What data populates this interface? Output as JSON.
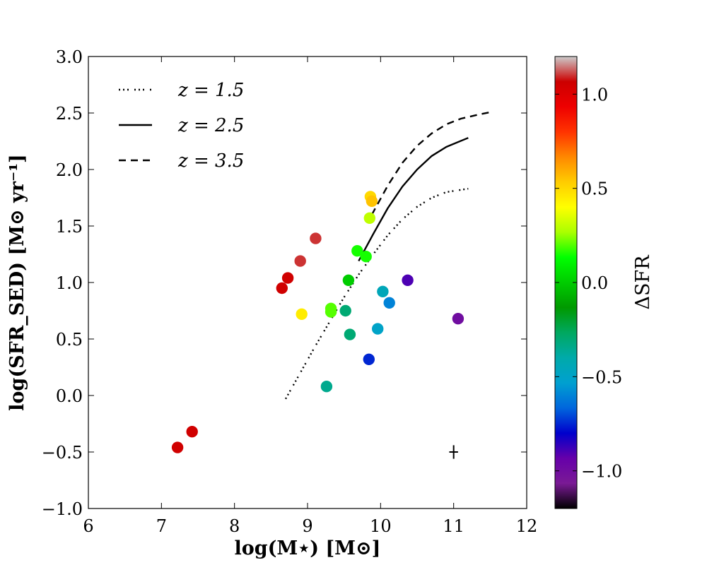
{
  "chart_data": {
    "type": "scatter",
    "title": "",
    "xlabel": "log(M⋆) [M⊙]",
    "ylabel": "log(SFR_SED) [M⊙ yr⁻¹]",
    "xlim": [
      6,
      12
    ],
    "ylim": [
      -1.0,
      3.0
    ],
    "xticks": [
      6,
      7,
      8,
      9,
      10,
      11,
      12
    ],
    "xtick_labels": [
      "6",
      "7",
      "8",
      "9",
      "10",
      "11",
      "12"
    ],
    "yticks": [
      -1.0,
      -0.5,
      0.0,
      0.5,
      1.0,
      1.5,
      2.0,
      2.5,
      3.0
    ],
    "ytick_labels": [
      "−1.0",
      "−0.5",
      "0.0",
      "0.5",
      "1.0",
      "1.5",
      "2.0",
      "2.5",
      "3.0"
    ],
    "grid": false,
    "legend_position": "top-left",
    "points": [
      {
        "x": 7.22,
        "y": -0.46,
        "c": 1.05
      },
      {
        "x": 7.42,
        "y": -0.32,
        "c": 1.05
      },
      {
        "x": 8.65,
        "y": 0.95,
        "c": 1.05
      },
      {
        "x": 8.73,
        "y": 1.04,
        "c": 1.05
      },
      {
        "x": 8.9,
        "y": 1.19,
        "c": 1.1
      },
      {
        "x": 9.11,
        "y": 1.39,
        "c": 1.1
      },
      {
        "x": 8.92,
        "y": 0.72,
        "c": 0.45
      },
      {
        "x": 9.26,
        "y": 0.08,
        "c": -0.35
      },
      {
        "x": 9.32,
        "y": 0.74,
        "c": 0.2
      },
      {
        "x": 9.32,
        "y": 0.77,
        "c": 0.2
      },
      {
        "x": 9.52,
        "y": 0.75,
        "c": -0.3
      },
      {
        "x": 9.58,
        "y": 0.54,
        "c": -0.3
      },
      {
        "x": 9.56,
        "y": 1.02,
        "c": 0.0
      },
      {
        "x": 9.68,
        "y": 1.28,
        "c": 0.15
      },
      {
        "x": 9.8,
        "y": 1.23,
        "c": 0.15
      },
      {
        "x": 9.85,
        "y": 1.57,
        "c": 0.3
      },
      {
        "x": 9.86,
        "y": 1.76,
        "c": 0.5
      },
      {
        "x": 9.88,
        "y": 1.72,
        "c": 0.55
      },
      {
        "x": 9.84,
        "y": 0.32,
        "c": -0.75
      },
      {
        "x": 9.96,
        "y": 0.59,
        "c": -0.5
      },
      {
        "x": 10.03,
        "y": 0.92,
        "c": -0.45
      },
      {
        "x": 10.12,
        "y": 0.82,
        "c": -0.6
      },
      {
        "x": 10.37,
        "y": 1.02,
        "c": -0.9
      },
      {
        "x": 11.06,
        "y": 0.68,
        "c": -1.0
      }
    ],
    "series": [
      {
        "name": "z = 1.5",
        "style": "dotted",
        "x": [
          8.7,
          8.9,
          9.1,
          9.3,
          9.5,
          9.7,
          9.9,
          10.1,
          10.3,
          10.5,
          10.7,
          10.9,
          11.2
        ],
        "y": [
          -0.03,
          0.2,
          0.43,
          0.65,
          0.87,
          1.07,
          1.25,
          1.42,
          1.56,
          1.67,
          1.75,
          1.8,
          1.83
        ]
      },
      {
        "name": "z = 2.5",
        "style": "solid",
        "x": [
          9.7,
          9.9,
          10.1,
          10.3,
          10.5,
          10.7,
          10.9,
          11.2
        ],
        "y": [
          1.19,
          1.43,
          1.66,
          1.85,
          2.0,
          2.12,
          2.2,
          2.28
        ]
      },
      {
        "name": "z = 3.5",
        "style": "dashed",
        "x": [
          9.88,
          10.1,
          10.3,
          10.5,
          10.7,
          10.9,
          11.1,
          11.3,
          11.52
        ],
        "y": [
          1.6,
          1.86,
          2.06,
          2.21,
          2.32,
          2.4,
          2.45,
          2.48,
          2.51
        ]
      }
    ],
    "error_bar": {
      "x": 11.0,
      "y": -0.5,
      "xerr": 0.06,
      "yerr": 0.06
    },
    "legend": [
      {
        "label": "z = 1.5",
        "style": "dotted"
      },
      {
        "label": "z = 2.5",
        "style": "solid"
      },
      {
        "label": "z = 3.5",
        "style": "dashed"
      }
    ],
    "colorbar": {
      "label": "ΔSFR",
      "range": [
        -1.2,
        1.2
      ],
      "ticks": [
        1.0,
        0.5,
        0.0,
        -0.5,
        -1.0
      ],
      "tick_labels": [
        "1.0",
        "0.5",
        "0.0",
        "−0.5",
        "−1.0"
      ],
      "colormap": [
        "#000000",
        "#7a1a95",
        "#6600aa",
        "#0000cc",
        "#0066dd",
        "#00a0d0",
        "#00aaaa",
        "#00a860",
        "#009900",
        "#00cc00",
        "#00ff00",
        "#aaff00",
        "#ffff00",
        "#ffcc00",
        "#ff8800",
        "#ff3300",
        "#ee0000",
        "#cc0000",
        "#cccccc"
      ]
    }
  }
}
